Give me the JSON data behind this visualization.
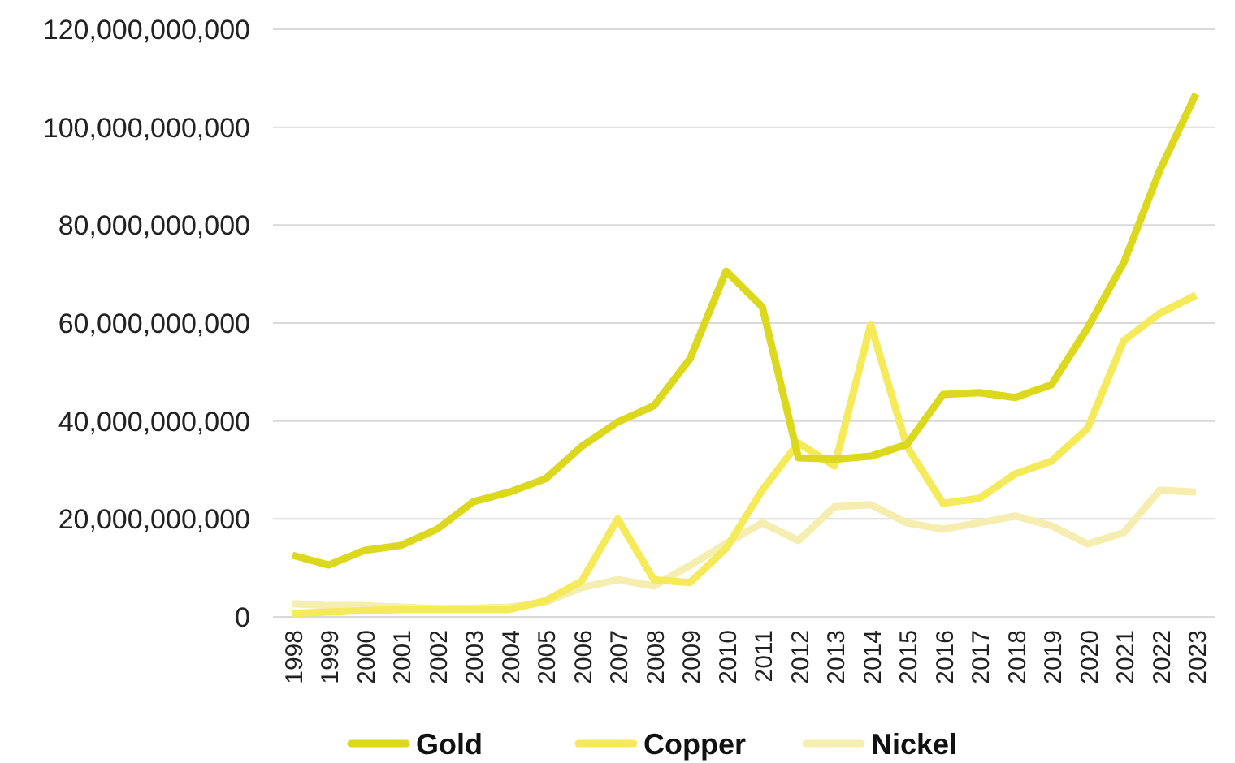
{
  "chart_data": {
    "type": "line",
    "categories": [
      "1998",
      "1999",
      "2000",
      "2001",
      "2002",
      "2003",
      "2004",
      "2005",
      "2006",
      "2007",
      "2008",
      "2009",
      "2010",
      "2011",
      "2012",
      "2013",
      "2014",
      "2015",
      "2016",
      "2017",
      "2018",
      "2019",
      "2020",
      "2021",
      "2022",
      "2023"
    ],
    "series": [
      {
        "name": "Gold",
        "color": "#dcd81e",
        "values": [
          12600000000,
          10600000000,
          13600000000,
          14600000000,
          17900000000,
          23500000000,
          25500000000,
          28200000000,
          34800000000,
          39800000000,
          43100000000,
          52700000000,
          70600000000,
          63300000000,
          32500000000,
          32200000000,
          32800000000,
          35200000000,
          45400000000,
          45800000000,
          44800000000,
          47400000000,
          59000000000,
          72300000000,
          91200000000,
          106800000000
        ]
      },
      {
        "name": "Copper",
        "color": "#f5ea5a",
        "values": [
          700000000,
          1000000000,
          1300000000,
          1500000000,
          1500000000,
          1500000000,
          1500000000,
          3300000000,
          7300000000,
          20000000000,
          7600000000,
          7000000000,
          14000000000,
          25900000000,
          35500000000,
          30800000000,
          59700000000,
          34800000000,
          23200000000,
          24200000000,
          29200000000,
          31800000000,
          38500000000,
          56400000000,
          62000000000,
          65700000000
        ]
      },
      {
        "name": "Nickel",
        "color": "#f5eeb0",
        "values": [
          2700000000,
          2300000000,
          2300000000,
          2000000000,
          1700000000,
          1800000000,
          2000000000,
          3000000000,
          6000000000,
          7600000000,
          6300000000,
          10500000000,
          15000000000,
          19200000000,
          15600000000,
          22500000000,
          22900000000,
          19200000000,
          17900000000,
          19200000000,
          20600000000,
          18600000000,
          14900000000,
          17200000000,
          25900000000,
          25500000000
        ]
      }
    ],
    "ylim": [
      0,
      120000000000
    ],
    "yticks": [
      {
        "value": 0,
        "label": "0"
      },
      {
        "value": 20000000000,
        "label": "20,000,000,000"
      },
      {
        "value": 40000000000,
        "label": "40,000,000,000"
      },
      {
        "value": 60000000000,
        "label": "60,000,000,000"
      },
      {
        "value": 80000000000,
        "label": "80,000,000,000"
      },
      {
        "value": 100000000000,
        "label": "100,000,000,000"
      },
      {
        "value": 120000000000,
        "label": "120,000,000,000"
      }
    ],
    "grid": "y",
    "legend": "bottom",
    "marker": "none",
    "line_style": "solid"
  }
}
